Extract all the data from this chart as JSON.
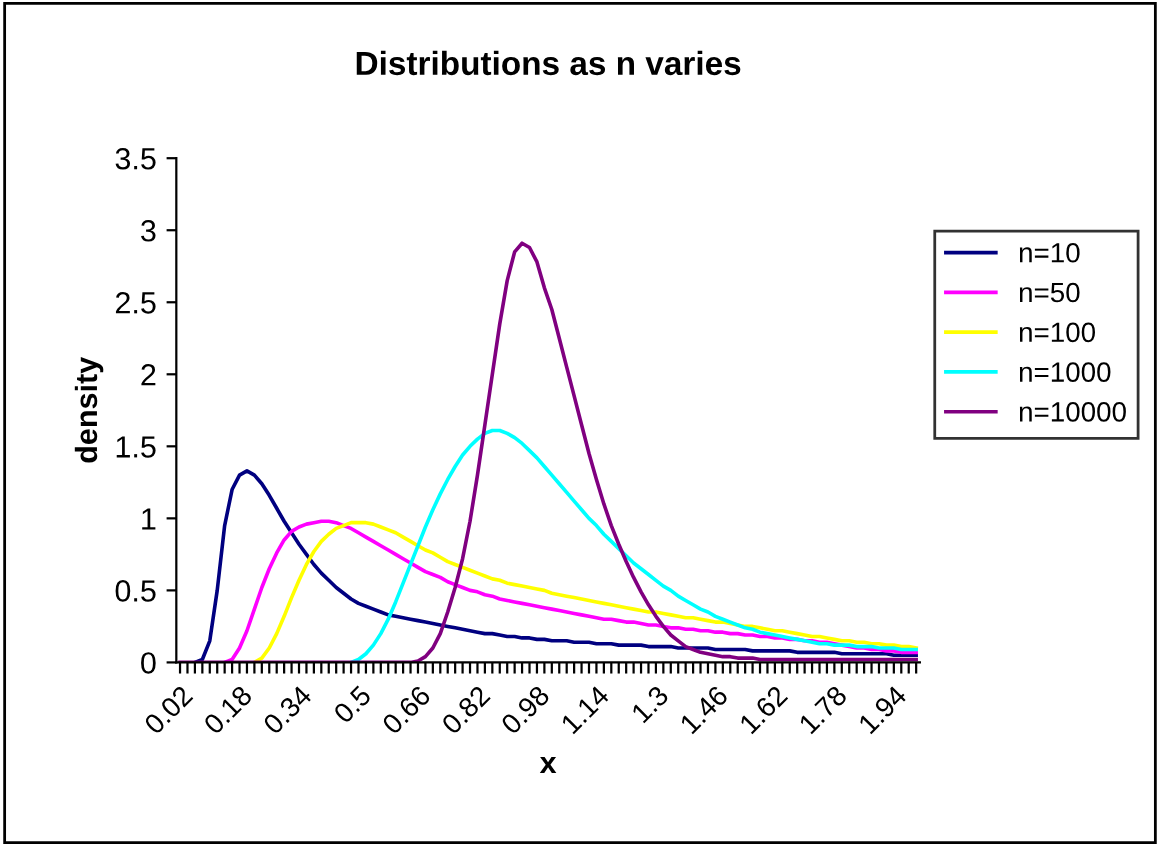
{
  "chart_data": {
    "type": "line",
    "title": "Distributions as n varies",
    "xlabel": "x",
    "ylabel": "density",
    "categories": [
      "0.02",
      null,
      null,
      null,
      null,
      null,
      null,
      null,
      "0.18",
      null,
      null,
      null,
      null,
      null,
      null,
      null,
      "0.34",
      null,
      null,
      null,
      null,
      null,
      null,
      null,
      "0.5",
      null,
      null,
      null,
      null,
      null,
      null,
      null,
      "0.66",
      null,
      null,
      null,
      null,
      null,
      null,
      null,
      "0.82",
      null,
      null,
      null,
      null,
      null,
      null,
      null,
      "0.98",
      null,
      null,
      null,
      null,
      null,
      null,
      null,
      "1.14",
      null,
      null,
      null,
      null,
      null,
      null,
      null,
      "1.3",
      null,
      null,
      null,
      null,
      null,
      null,
      null,
      "1.46",
      null,
      null,
      null,
      null,
      null,
      null,
      null,
      "1.62",
      null,
      null,
      null,
      null,
      null,
      null,
      null,
      "1.78",
      null,
      null,
      null,
      null,
      null,
      null,
      null,
      "1.94",
      null,
      null,
      null
    ],
    "ylim": [
      0,
      3.5
    ],
    "yticks": [
      0,
      0.5,
      1,
      1.5,
      2,
      2.5,
      3,
      3.5
    ],
    "grid": false,
    "legend": "right",
    "marker": "none",
    "line_style": "solid",
    "series": [
      {
        "name": "n=10",
        "color": "#000080",
        "values": [
          null,
          null,
          0,
          0.02,
          0.15,
          0.5,
          0.95,
          1.2,
          1.3,
          1.33,
          1.3,
          1.24,
          1.16,
          1.07,
          0.98,
          0.9,
          0.82,
          0.75,
          0.68,
          0.62,
          0.57,
          0.52,
          0.48,
          0.44,
          0.41,
          0.39,
          0.37,
          0.35,
          0.33,
          0.32,
          0.31,
          0.3,
          0.29,
          0.28,
          0.27,
          0.26,
          0.25,
          0.24,
          0.23,
          0.22,
          0.21,
          0.2,
          0.2,
          0.19,
          0.18,
          0.18,
          0.17,
          0.17,
          0.16,
          0.16,
          0.15,
          0.15,
          0.15,
          0.14,
          0.14,
          0.14,
          0.13,
          0.13,
          0.13,
          0.12,
          0.12,
          0.12,
          0.12,
          0.11,
          0.11,
          0.11,
          0.11,
          0.1,
          0.1,
          0.1,
          0.1,
          0.1,
          0.09,
          0.09,
          0.09,
          0.09,
          0.09,
          0.08,
          0.08,
          0.08,
          0.08,
          0.08,
          0.08,
          0.07,
          0.07,
          0.07,
          0.07,
          0.07,
          0.07,
          0.06,
          0.06,
          0.06,
          0.06,
          0.06,
          0.06,
          0.06,
          0.05,
          0.05,
          0.05,
          0.05
        ]
      },
      {
        "name": "n=50",
        "color": "#ff00ff",
        "values": [
          null,
          null,
          null,
          null,
          null,
          null,
          0,
          0.02,
          0.1,
          0.22,
          0.37,
          0.52,
          0.65,
          0.76,
          0.85,
          0.91,
          0.94,
          0.96,
          0.97,
          0.98,
          0.98,
          0.97,
          0.95,
          0.93,
          0.9,
          0.87,
          0.84,
          0.81,
          0.78,
          0.75,
          0.72,
          0.69,
          0.66,
          0.63,
          0.61,
          0.59,
          0.56,
          0.54,
          0.52,
          0.5,
          0.49,
          0.47,
          0.46,
          0.44,
          0.43,
          0.42,
          0.41,
          0.4,
          0.39,
          0.38,
          0.37,
          0.36,
          0.35,
          0.34,
          0.33,
          0.32,
          0.31,
          0.3,
          0.3,
          0.29,
          0.28,
          0.28,
          0.27,
          0.26,
          0.26,
          0.25,
          0.24,
          0.24,
          0.23,
          0.23,
          0.22,
          0.22,
          0.21,
          0.21,
          0.2,
          0.2,
          0.19,
          0.19,
          0.18,
          0.18,
          0.17,
          0.17,
          0.16,
          0.16,
          0.15,
          0.15,
          0.14,
          0.14,
          0.13,
          0.12,
          0.11,
          0.1,
          0.1,
          0.09,
          0.09,
          0.08,
          0.08,
          0.07,
          0.07,
          0.07
        ]
      },
      {
        "name": "n=100",
        "color": "#ffff00",
        "values": [
          null,
          null,
          null,
          null,
          null,
          null,
          null,
          null,
          null,
          null,
          0,
          0.03,
          0.1,
          0.2,
          0.32,
          0.45,
          0.57,
          0.68,
          0.77,
          0.84,
          0.89,
          0.93,
          0.95,
          0.97,
          0.97,
          0.97,
          0.96,
          0.94,
          0.92,
          0.9,
          0.87,
          0.84,
          0.81,
          0.78,
          0.76,
          0.73,
          0.7,
          0.68,
          0.66,
          0.64,
          0.62,
          0.6,
          0.58,
          0.57,
          0.55,
          0.54,
          0.53,
          0.52,
          0.51,
          0.5,
          0.48,
          0.47,
          0.46,
          0.45,
          0.44,
          0.43,
          0.42,
          0.41,
          0.4,
          0.39,
          0.38,
          0.37,
          0.36,
          0.35,
          0.35,
          0.34,
          0.33,
          0.32,
          0.31,
          0.31,
          0.3,
          0.29,
          0.28,
          0.28,
          0.27,
          0.26,
          0.25,
          0.25,
          0.24,
          0.23,
          0.22,
          0.22,
          0.21,
          0.2,
          0.19,
          0.18,
          0.18,
          0.17,
          0.16,
          0.15,
          0.15,
          0.14,
          0.14,
          0.13,
          0.13,
          0.12,
          0.12,
          0.11,
          0.11,
          0.1
        ]
      },
      {
        "name": "n=1000",
        "color": "#00ffff",
        "values": [
          null,
          null,
          null,
          null,
          null,
          null,
          null,
          null,
          null,
          null,
          null,
          null,
          null,
          null,
          null,
          null,
          null,
          null,
          null,
          null,
          null,
          null,
          null,
          0,
          0.02,
          0.06,
          0.12,
          0.2,
          0.3,
          0.42,
          0.55,
          0.68,
          0.81,
          0.94,
          1.06,
          1.17,
          1.27,
          1.36,
          1.44,
          1.5,
          1.55,
          1.59,
          1.61,
          1.61,
          1.59,
          1.56,
          1.52,
          1.47,
          1.42,
          1.36,
          1.3,
          1.24,
          1.18,
          1.12,
          1.06,
          1.0,
          0.95,
          0.89,
          0.84,
          0.79,
          0.74,
          0.69,
          0.65,
          0.61,
          0.57,
          0.53,
          0.5,
          0.46,
          0.43,
          0.4,
          0.37,
          0.35,
          0.32,
          0.3,
          0.28,
          0.26,
          0.24,
          0.23,
          0.21,
          0.2,
          0.19,
          0.18,
          0.17,
          0.16,
          0.15,
          0.14,
          0.13,
          0.13,
          0.12,
          0.12,
          0.12,
          0.11,
          0.11,
          0.11,
          0.1,
          0.1,
          0.1,
          0.09,
          0.09,
          0.09
        ]
      },
      {
        "name": "n=10000",
        "color": "#800080",
        "values": [
          0,
          0,
          0,
          0,
          0,
          0,
          0,
          0,
          0,
          0,
          0,
          0,
          0,
          0,
          0,
          0,
          0,
          0,
          0,
          0,
          0,
          0,
          0,
          0,
          0,
          0,
          0,
          0,
          0,
          0,
          0,
          0,
          0.01,
          0.04,
          0.1,
          0.2,
          0.35,
          0.52,
          0.72,
          0.98,
          1.3,
          1.65,
          2.0,
          2.35,
          2.65,
          2.85,
          2.91,
          2.88,
          2.78,
          2.6,
          2.45,
          2.25,
          2.05,
          1.85,
          1.65,
          1.45,
          1.27,
          1.1,
          0.95,
          0.82,
          0.7,
          0.59,
          0.49,
          0.4,
          0.32,
          0.25,
          0.19,
          0.15,
          0.11,
          0.09,
          0.07,
          0.06,
          0.05,
          0.04,
          0.04,
          0.03,
          0.03,
          0.03,
          0.02,
          0.02,
          0.02,
          0.02,
          0.02,
          0.02,
          0.02,
          0.02,
          0.02,
          0.02,
          0.02,
          0.02,
          0.02,
          0.02,
          0.02,
          0.02,
          0.02,
          0.02,
          0.02,
          0.02,
          0.02,
          0.02
        ]
      }
    ]
  }
}
